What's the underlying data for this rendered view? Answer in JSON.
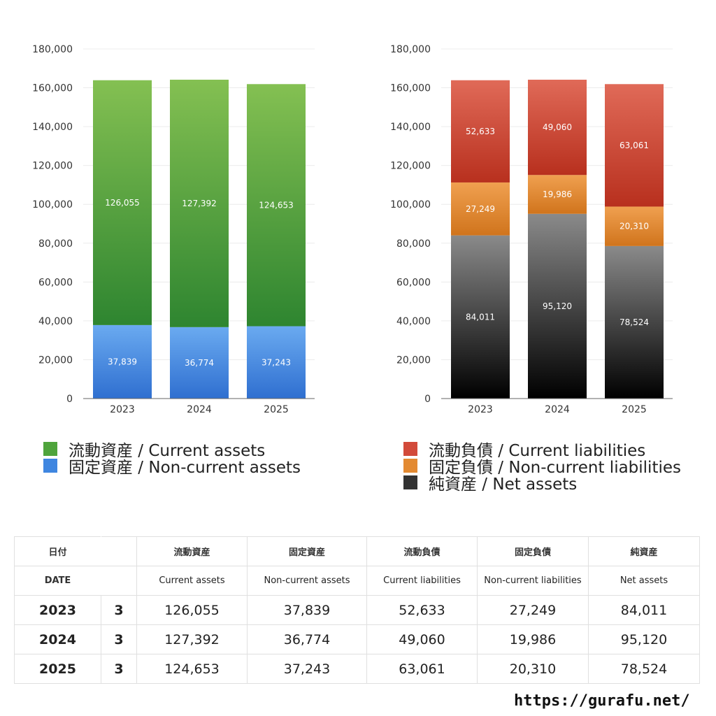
{
  "chart_data": [
    {
      "type": "bar",
      "stacked": true,
      "categories": [
        "2023",
        "2024",
        "2025"
      ],
      "series": [
        {
          "name": "固定資産 / Non-current assets",
          "values": [
            37839,
            36774,
            37243
          ],
          "colors": [
            "#2f6fd0",
            "#6aaaf0"
          ]
        },
        {
          "name": "流動資産 / Current assets",
          "values": [
            126055,
            127392,
            124653
          ],
          "colors": [
            "#2e8530",
            "#84c052"
          ]
        }
      ],
      "data_labels": {
        "固定資産 / Non-current assets": [
          "37,839",
          "36,774",
          "37,243"
        ],
        "流動資産 / Current assets": [
          "126,055",
          "127,392",
          "124,653"
        ]
      },
      "y_ticks": [
        "0",
        "20,000",
        "40,000",
        "60,000",
        "80,000",
        "100,000",
        "120,000",
        "140,000",
        "160,000",
        "180,000"
      ],
      "ylim": [
        0,
        180000
      ],
      "grid": true,
      "legend_position": "bottom"
    },
    {
      "type": "bar",
      "stacked": true,
      "categories": [
        "2023",
        "2024",
        "2025"
      ],
      "series": [
        {
          "name": "純資産 / Net assets",
          "values": [
            84011,
            95120,
            78524
          ],
          "colors": [
            "#000000",
            "#8a8a8a"
          ]
        },
        {
          "name": "固定負債 / Non-current liabilities",
          "values": [
            27249,
            19986,
            20310
          ],
          "colors": [
            "#d0741c",
            "#f0a050"
          ]
        },
        {
          "name": "流動負債 / Current liabilities",
          "values": [
            52633,
            49060,
            63061
          ],
          "colors": [
            "#b8301e",
            "#e06a58"
          ]
        }
      ],
      "data_labels": {
        "純資産 / Net assets": [
          "84,011",
          "95,120",
          "78,524"
        ],
        "固定負債 / Non-current liabilities": [
          "27,249",
          "19,986",
          "20,310"
        ],
        "流動負債 / Current liabilities": [
          "52,633",
          "49,060",
          "63,061"
        ]
      },
      "y_ticks": [
        "0",
        "20,000",
        "40,000",
        "60,000",
        "80,000",
        "100,000",
        "120,000",
        "140,000",
        "160,000",
        "180,000"
      ],
      "ylim": [
        0,
        180000
      ],
      "grid": true,
      "legend_position": "bottom"
    }
  ],
  "legend_left": [
    {
      "label": "流動資産 / Current assets",
      "color": "#4fa43c"
    },
    {
      "label": "固定資産 / Non-current assets",
      "color": "#3f86e0"
    }
  ],
  "legend_right": [
    {
      "label": "流動負債 / Current liabilities",
      "color": "#d24a3a"
    },
    {
      "label": "固定負債 / Non-current liabilities",
      "color": "#e38a32"
    },
    {
      "label": "純資産 / Net assets",
      "color": "#333333"
    }
  ],
  "table": {
    "header_jp": [
      "日付",
      "流動資産",
      "固定資産",
      "流動負債",
      "固定負債",
      "純資産"
    ],
    "header_en": [
      "DATE",
      "Current assets",
      "Non-current assets",
      "Current liabilities",
      "Non-current liabilities",
      "Net assets"
    ],
    "rows": [
      {
        "year": "2023",
        "month": "3",
        "values": [
          "126,055",
          "37,839",
          "52,633",
          "27,249",
          "84,011"
        ]
      },
      {
        "year": "2024",
        "month": "3",
        "values": [
          "127,392",
          "36,774",
          "49,060",
          "19,986",
          "95,120"
        ]
      },
      {
        "year": "2025",
        "month": "3",
        "values": [
          "124,653",
          "37,243",
          "63,061",
          "20,310",
          "78,524"
        ]
      }
    ]
  },
  "footer_url": "https://gurafu.net/"
}
